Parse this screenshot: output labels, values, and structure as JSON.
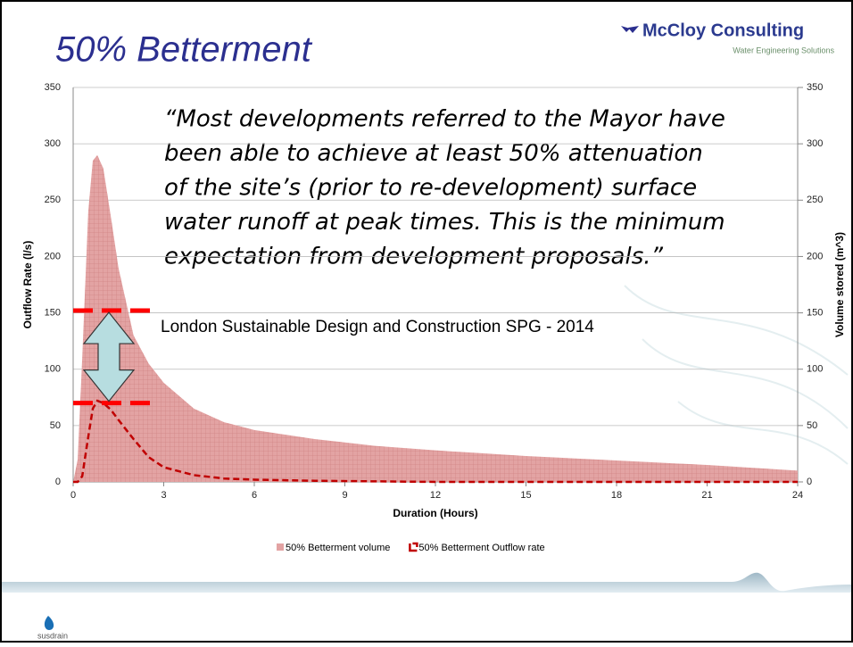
{
  "header": {
    "title": "50% Betterment",
    "logo": "McCloy Consulting",
    "logo_tagline": "Water Engineering Solutions",
    "footer_logo": "susdrain"
  },
  "quote": [
    "“Most developments referred to the Mayor have",
    "been able to achieve at least 50% attenuation",
    "of the site’s (prior to re-development) surface",
    "water runoff at peak times. This is the minimum",
    "expectation from development proposals.”"
  ],
  "source": "London Sustainable Design and Construction SPG - 2014",
  "chart_data": {
    "type": "area_line",
    "xlabel": "Duration (Hours)",
    "ylabel": "Outflow Rate (l/s)",
    "y2label": "Volume stored (m^3)",
    "x": [
      0,
      0.15,
      0.3,
      0.5,
      0.65,
      0.8,
      1,
      1.25,
      1.5,
      2,
      2.5,
      3,
      4,
      5,
      6,
      8,
      10,
      12,
      15,
      18,
      21,
      24
    ],
    "series": [
      {
        "name": "50% Betterment volume",
        "color": "#e3a3a3",
        "axis": "y2",
        "values": [
          0,
          20,
          110,
          240,
          285,
          290,
          278,
          235,
          190,
          130,
          105,
          88,
          65,
          53,
          46,
          38,
          32,
          28,
          23,
          19,
          15,
          10
        ]
      },
      {
        "name": "50% Betterment Outflow rate",
        "color": "#c00000",
        "axis": "y",
        "values": [
          0,
          0,
          5,
          40,
          65,
          72,
          70,
          64,
          55,
          38,
          22,
          13,
          6,
          3,
          2,
          1,
          0.5,
          0,
          0,
          0,
          0,
          0
        ]
      }
    ],
    "reference_lines": [
      152,
      70
    ],
    "reference_color": "#ff0000",
    "xlim": [
      0,
      24
    ],
    "xticks": [
      0,
      3,
      6,
      9,
      12,
      15,
      18,
      21,
      24
    ],
    "ylim": [
      0,
      350
    ],
    "yticks": [
      0,
      50,
      100,
      150,
      200,
      250,
      300,
      350
    ],
    "y2lim": [
      0,
      350
    ],
    "y2ticks": [
      0,
      50,
      100,
      150,
      200,
      250,
      300,
      350
    ],
    "grid": true
  }
}
